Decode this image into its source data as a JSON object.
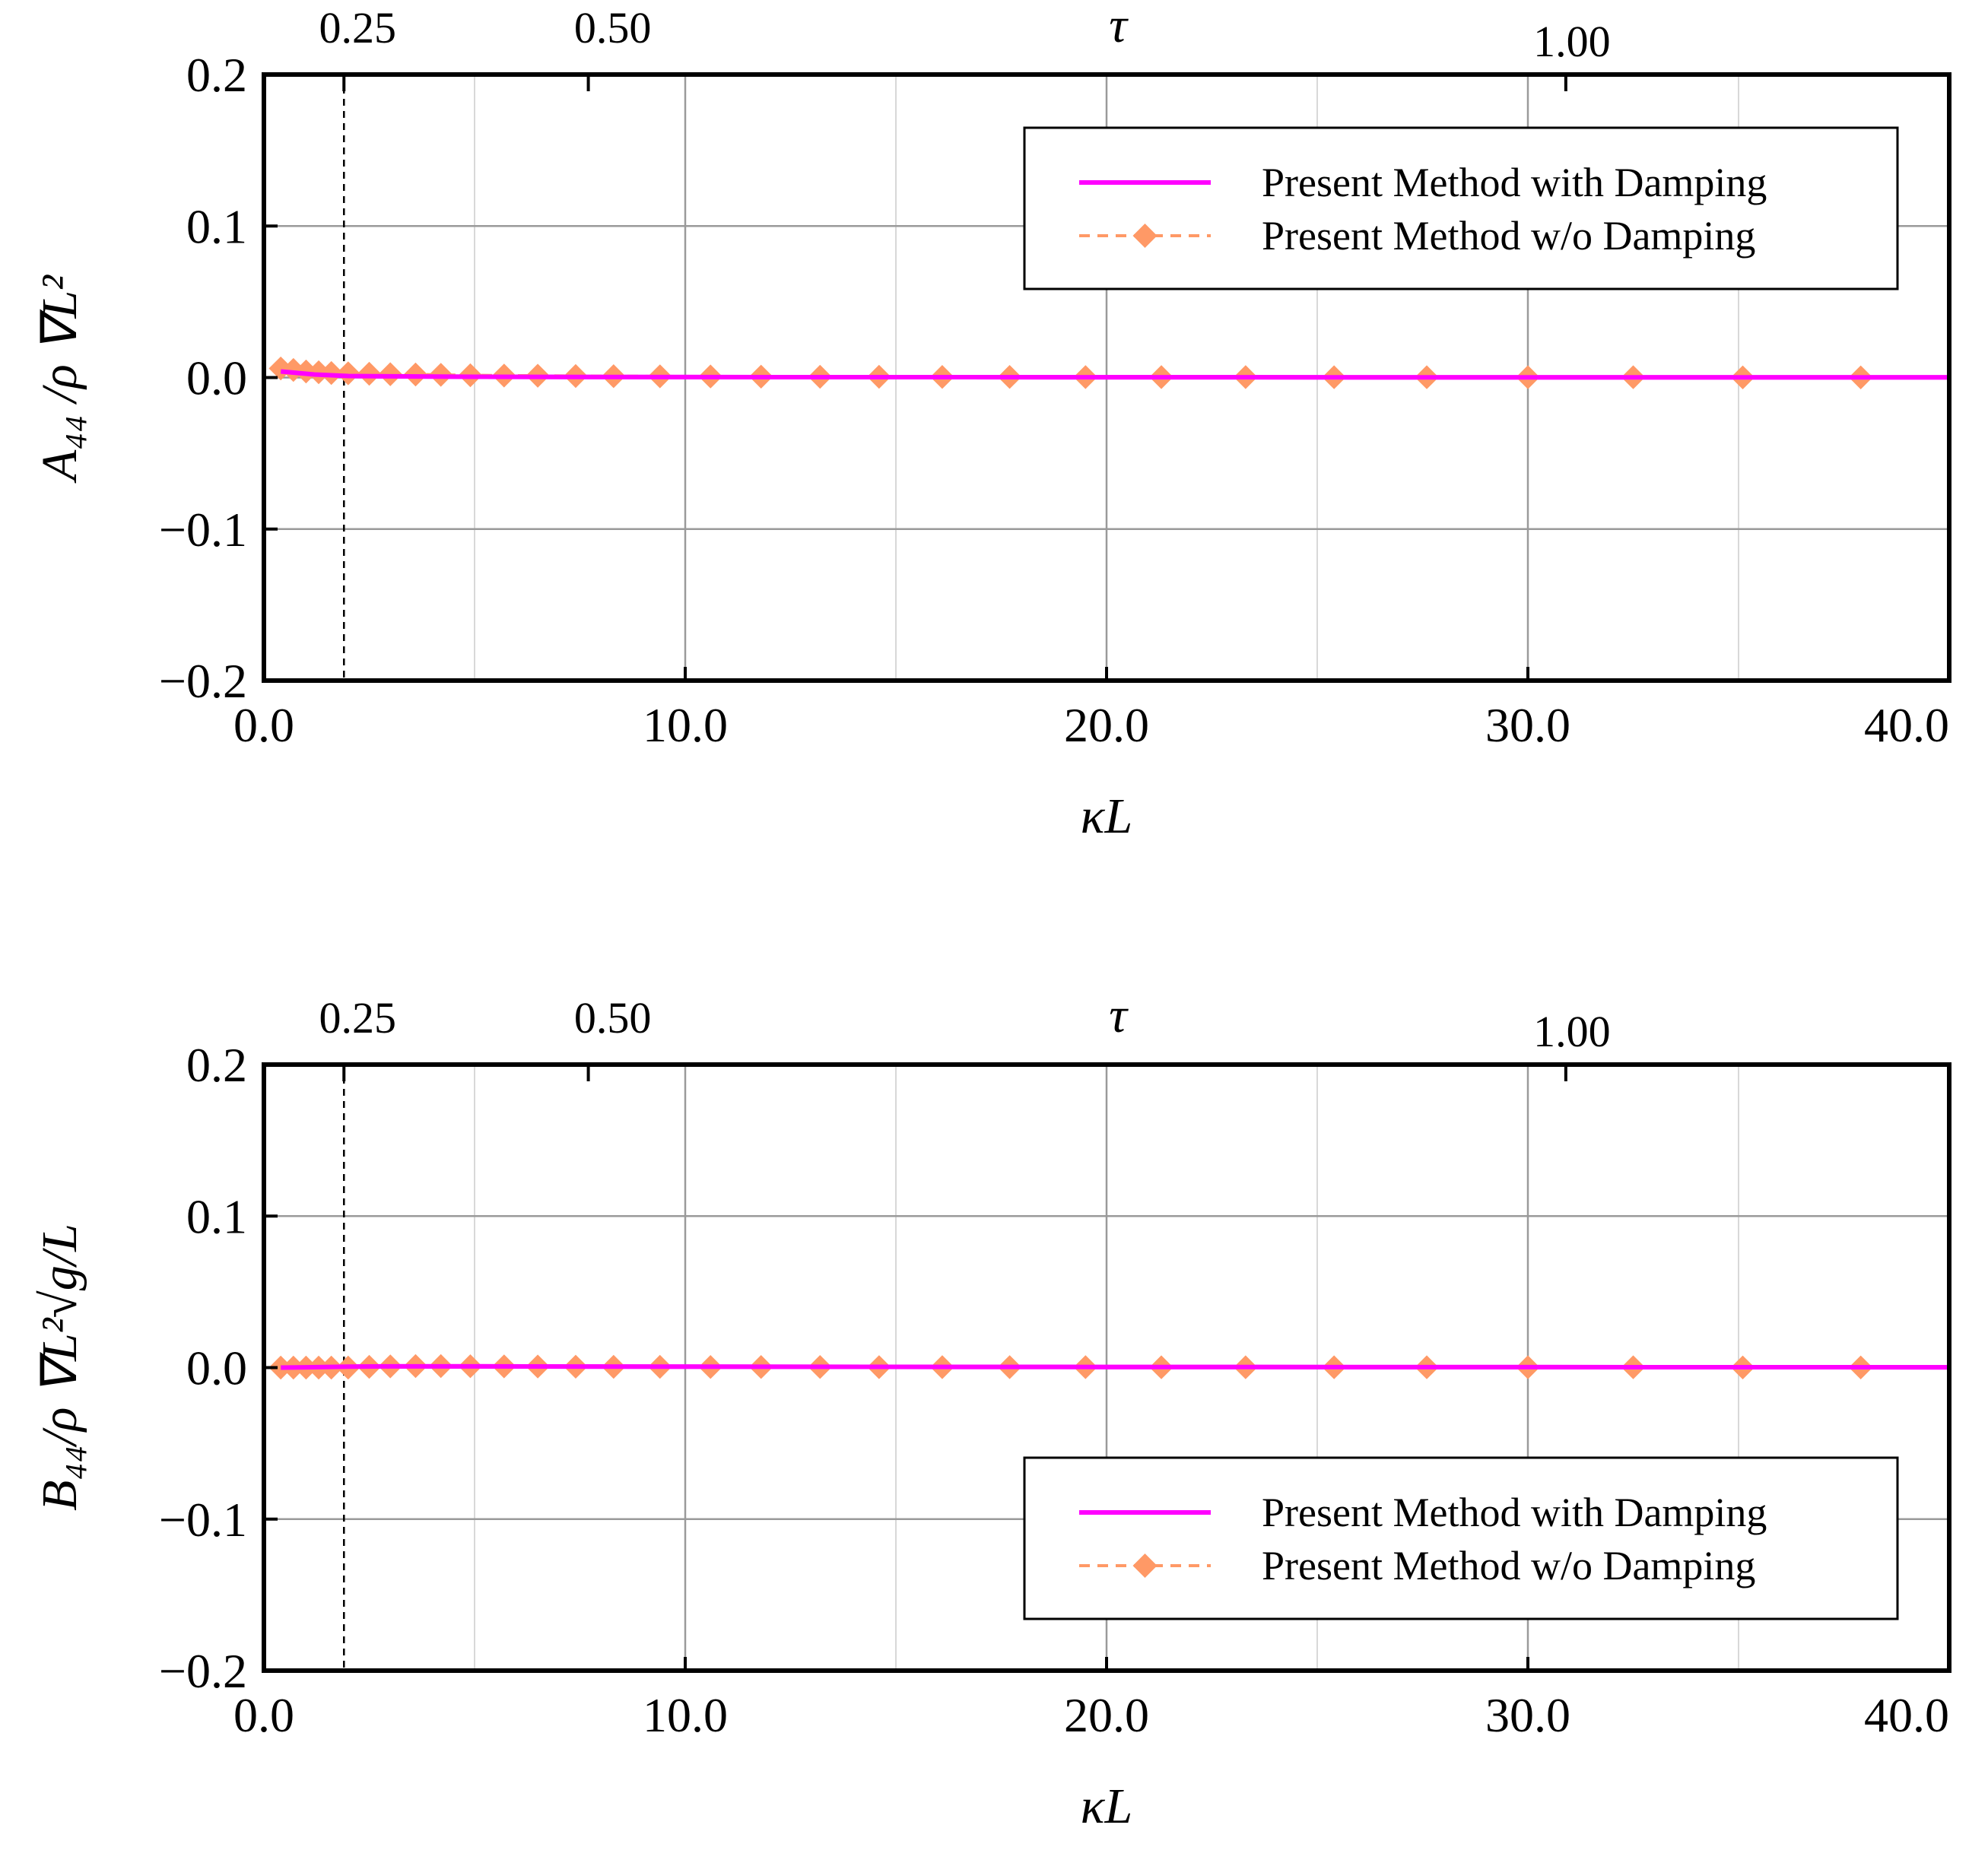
{
  "chart_data": [
    {
      "type": "line",
      "xlabel": "κL",
      "ylabel": "A₄₄ /ρ ∇L²",
      "top_axis_label": "τ",
      "top_ticks": [
        {
          "label": "0.25",
          "kL": 1.9
        },
        {
          "label": "0.50",
          "kL": 7.7
        },
        {
          "label": "1.00",
          "kL": 30.9
        }
      ],
      "xlim": [
        0,
        40
      ],
      "ylim": [
        -0.2,
        0.2
      ],
      "xticks": [
        "0.0",
        "10.0",
        "20.0",
        "30.0",
        "40.0"
      ],
      "yticks": [
        "−0.2",
        "−0.1",
        "0.0",
        "0.1",
        "0.2"
      ],
      "xtick_values": [
        0,
        10,
        20,
        30,
        40
      ],
      "ytick_values": [
        -0.2,
        -0.1,
        0.0,
        0.1,
        0.2
      ],
      "vline_x": 1.9,
      "grid": true,
      "legend_position": "top-right",
      "series": [
        {
          "name": "Present Method with Damping",
          "color": "#ff00ff",
          "style": "solid",
          "x": [
            0.4,
            0.8,
            1.2,
            1.6,
            2.0,
            3.0,
            5.0,
            10.0,
            20.0,
            30.0,
            40.0
          ],
          "y": [
            0.004,
            0.003,
            0.002,
            0.0015,
            0.001,
            0.0008,
            0.0005,
            0.0003,
            0.0002,
            0.0001,
            0.0001
          ]
        },
        {
          "name": "Present Method w/o Damping",
          "color": "#ff9966",
          "style": "dashed-diamond",
          "x": [
            0.4,
            0.7,
            1.0,
            1.3,
            1.6,
            2.0,
            2.5,
            3.0,
            3.6,
            4.2,
            4.9,
            5.7,
            6.5,
            7.4,
            8.3,
            9.4,
            10.6,
            11.8,
            13.2,
            14.6,
            16.1,
            17.7,
            19.5,
            21.3,
            23.3,
            25.4,
            27.6,
            30.0,
            32.5,
            35.1,
            37.9
          ],
          "y": [
            0.006,
            0.005,
            0.004,
            0.0035,
            0.003,
            0.0028,
            0.0025,
            0.0022,
            0.002,
            0.0018,
            0.0015,
            0.0013,
            0.0012,
            0.001,
            0.0009,
            0.0008,
            0.0007,
            0.0006,
            0.0005,
            0.0005,
            0.0004,
            0.0004,
            0.0003,
            0.0003,
            0.0003,
            0.0002,
            0.0002,
            0.0002,
            0.0002,
            0.0001,
            0.0001
          ]
        }
      ]
    },
    {
      "type": "line",
      "xlabel": "κL",
      "ylabel": "B₄₄/ρ ∇L²√g/L",
      "top_axis_label": "τ",
      "top_ticks": [
        {
          "label": "0.25",
          "kL": 1.9
        },
        {
          "label": "0.50",
          "kL": 7.7
        },
        {
          "label": "1.00",
          "kL": 30.9
        }
      ],
      "xlim": [
        0,
        40
      ],
      "ylim": [
        -0.2,
        0.2
      ],
      "xticks": [
        "0.0",
        "10.0",
        "20.0",
        "30.0",
        "40.0"
      ],
      "yticks": [
        "−0.2",
        "−0.1",
        "0.0",
        "0.1",
        "0.2"
      ],
      "xtick_values": [
        0,
        10,
        20,
        30,
        40
      ],
      "ytick_values": [
        -0.2,
        -0.1,
        0.0,
        0.1,
        0.2
      ],
      "vline_x": 1.9,
      "grid": true,
      "legend_position": "bottom-right",
      "series": [
        {
          "name": "Present Method with Damping",
          "color": "#ff00ff",
          "style": "solid",
          "x": [
            0.4,
            1.0,
            2.0,
            3.0,
            5.0,
            10.0,
            20.0,
            30.0,
            40.0
          ],
          "y": [
            0.0,
            0.0002,
            0.0006,
            0.0008,
            0.0008,
            0.0006,
            0.0004,
            0.0003,
            0.0002
          ]
        },
        {
          "name": "Present Method w/o Damping",
          "color": "#ff9966",
          "style": "dashed-diamond",
          "x": [
            0.4,
            0.7,
            1.0,
            1.3,
            1.6,
            2.0,
            2.5,
            3.0,
            3.6,
            4.2,
            4.9,
            5.7,
            6.5,
            7.4,
            8.3,
            9.4,
            10.6,
            11.8,
            13.2,
            14.6,
            16.1,
            17.7,
            19.5,
            21.3,
            23.3,
            25.4,
            27.6,
            30.0,
            32.5,
            35.1,
            37.9
          ],
          "y": [
            0.0,
            0.0,
            0.0,
            0.0,
            0.0,
            0.0,
            0.0005,
            0.0008,
            0.001,
            0.001,
            0.0009,
            0.0008,
            0.0007,
            0.0006,
            0.0005,
            0.0005,
            0.0004,
            0.0004,
            0.0004,
            0.0003,
            0.0003,
            0.0003,
            0.0003,
            0.0002,
            0.0002,
            0.0002,
            0.0002,
            0.0002,
            0.0002,
            0.0001,
            0.0001
          ]
        }
      ]
    }
  ]
}
